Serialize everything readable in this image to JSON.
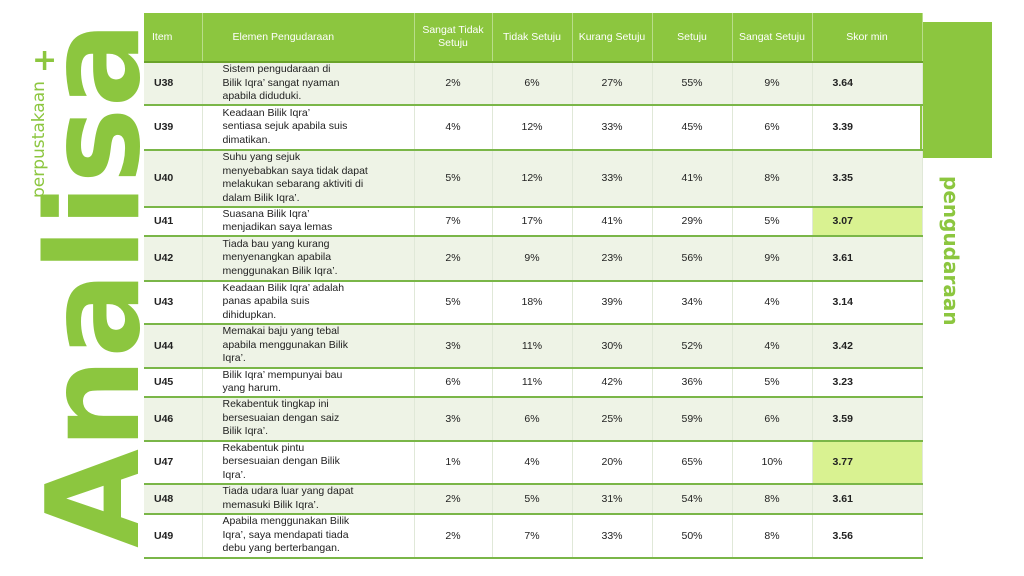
{
  "side": {
    "main_word": "Analisa",
    "sub_word": "perpustakaan",
    "plus": "+",
    "right_word": "pengudaraan"
  },
  "colors": {
    "accent": "#8cc63f",
    "highlight": "#d9f291"
  },
  "table": {
    "headers": [
      "Item",
      "Elemen Pengudaraan",
      "Sangat Tidak Setuju",
      "Tidak Setuju",
      "Kurang Setuju",
      "Setuju",
      "Sangat Setuju",
      "Skor min"
    ],
    "rows": [
      {
        "item": "U38",
        "element": "Sistem pengudaraan di\nBilik Iqra’ sangat nyaman\napabila diduduki.",
        "sts": "2%",
        "ts": "6%",
        "ks": "27%",
        "s": "55%",
        "ss": "9%",
        "score": "3.64"
      },
      {
        "item": "U39",
        "element": "Keadaan Bilik Iqra’\nsentiasa sejuk apabila suis\ndimatikan.",
        "sts": "4%",
        "ts": "12%",
        "ks": "33%",
        "s": "45%",
        "ss": "6%",
        "score": "3.39"
      },
      {
        "item": "U40",
        "element": "Suhu yang sejuk\nmenyebabkan saya tidak dapat\nmelakukan sebarang aktiviti di\ndalam Bilik Iqra’.",
        "sts": "5%",
        "ts": "12%",
        "ks": "33%",
        "s": "41%",
        "ss": "8%",
        "score": "3.35"
      },
      {
        "item": "U41",
        "element": "Suasana Bilik Iqra’\nmenjadikan saya lemas",
        "sts": "7%",
        "ts": "17%",
        "ks": "41%",
        "s": "29%",
        "ss": "5%",
        "score": "3.07"
      },
      {
        "item": "U42",
        "element": "Tiada bau yang kurang\nmenyenangkan apabila\nmenggunakan Bilik Iqra’.",
        "sts": "2%",
        "ts": "9%",
        "ks": "23%",
        "s": "56%",
        "ss": "9%",
        "score": "3.61"
      },
      {
        "item": "U43",
        "element": "Keadaan Bilik Iqra’ adalah\npanas apabila suis\ndihidupkan.",
        "sts": "5%",
        "ts": "18%",
        "ks": "39%",
        "s": "34%",
        "ss": "4%",
        "score": "3.14"
      },
      {
        "item": "U44",
        "element": "Memakai baju yang tebal\napabila menggunakan Bilik\nIqra’.",
        "sts": "3%",
        "ts": "11%",
        "ks": "30%",
        "s": "52%",
        "ss": "4%",
        "score": "3.42"
      },
      {
        "item": "U45",
        "element": "Bilik Iqra’ mempunyai bau\nyang harum.",
        "sts": "6%",
        "ts": "11%",
        "ks": "42%",
        "s": "36%",
        "ss": "5%",
        "score": "3.23"
      },
      {
        "item": "U46",
        "element": "Rekabentuk tingkap ini\nbersesuaian dengan saiz\nBilik Iqra’.",
        "sts": "3%",
        "ts": "6%",
        "ks": "25%",
        "s": "59%",
        "ss": "6%",
        "score": "3.59"
      },
      {
        "item": "U47",
        "element": "Rekabentuk pintu\nbersesuaian dengan  Bilik\nIqra’.",
        "sts": "1%",
        "ts": "4%",
        "ks": "20%",
        "s": "65%",
        "ss": "10%",
        "score": "3.77"
      },
      {
        "item": "U48",
        "element": "Tiada udara luar yang dapat\nmemasuki Bilik Iqra’.",
        "sts": "2%",
        "ts": "5%",
        "ks": "31%",
        "s": "54%",
        "ss": "8%",
        "score": "3.61"
      },
      {
        "item": "U49",
        "element": "Apabila menggunakan Bilik\nIqra’, saya mendapati tiada\ndebu yang berterbangan.",
        "sts": "2%",
        "ts": "7%",
        "ks": "33%",
        "s": "50%",
        "ss": "8%",
        "score": "3.56"
      }
    ],
    "highlighted_scores": [
      "U41",
      "U47"
    ]
  }
}
